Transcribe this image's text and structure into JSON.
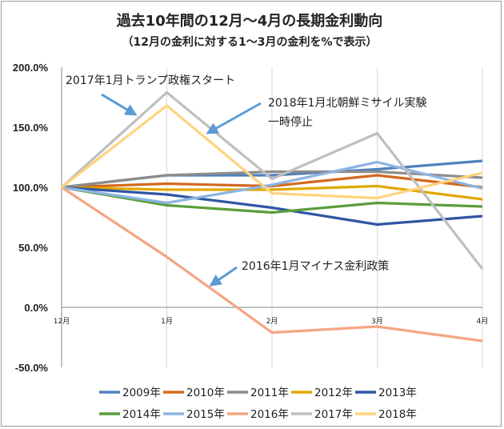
{
  "chart_data": {
    "type": "line",
    "title": "過去10年間の12月～4月の長期金利動向",
    "subtitle": "（12月の金利に対する1～3月の金利を%で表示）",
    "categories": [
      "12月",
      "1月",
      "2月",
      "3月",
      "4月"
    ],
    "ylim": [
      -50,
      200
    ],
    "y_ticks": [
      {
        "value": 200,
        "label": "200.0%"
      },
      {
        "value": 150,
        "label": "150.0%"
      },
      {
        "value": 100,
        "label": "100.0%"
      },
      {
        "value": 50,
        "label": "50.0%"
      },
      {
        "value": 0,
        "label": "0.0%"
      },
      {
        "value": -50,
        "label": "-50.0%"
      }
    ],
    "grid": "vertical",
    "legend_position": "bottom",
    "series": [
      {
        "name": "2009年",
        "color": "#4f81bd",
        "values": [
          100,
          110,
          110,
          115,
          122
        ]
      },
      {
        "name": "2010年",
        "color": "#d2691e",
        "values": [
          100,
          103,
          101,
          110,
          100
        ]
      },
      {
        "name": "2011年",
        "color": "#8c8c8c",
        "values": [
          100,
          110,
          113,
          113,
          108
        ]
      },
      {
        "name": "2012年",
        "color": "#e0a800",
        "values": [
          100,
          98,
          98,
          101,
          90
        ]
      },
      {
        "name": "2013年",
        "color": "#2f55a4",
        "values": [
          100,
          94,
          83,
          69,
          76
        ]
      },
      {
        "name": "2014年",
        "color": "#5a9e3a",
        "values": [
          100,
          85,
          79,
          87,
          84
        ]
      },
      {
        "name": "2015年",
        "color": "#8db4e2",
        "values": [
          100,
          87,
          102,
          121,
          99
        ]
      },
      {
        "name": "2016年",
        "color": "#f4a582",
        "values": [
          100,
          42,
          -21,
          -16,
          -28
        ]
      },
      {
        "name": "2017年",
        "color": "#bfbfbf",
        "values": [
          100,
          179,
          107,
          145,
          32
        ]
      },
      {
        "name": "2018年",
        "color": "#ffd37f",
        "values": [
          100,
          168,
          95,
          91,
          112
        ]
      }
    ],
    "annotations": [
      {
        "text": "2017年1月トランプ政権スタート"
      },
      {
        "text_lines": [
          "2018年1月北朝鮮ミサイル実験",
          "一時停止"
        ]
      },
      {
        "text": "2016年1月マイナス金利政策"
      }
    ],
    "annotation_arrow_color": "#5b9bd5"
  }
}
